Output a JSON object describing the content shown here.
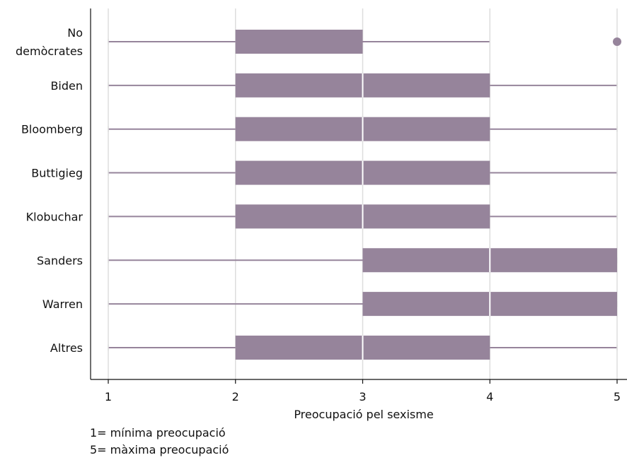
{
  "chart_data": {
    "type": "boxplot",
    "orientation": "horizontal",
    "xlabel": "Preocupació pel sexisme",
    "xlim": [
      1,
      5
    ],
    "xticks": [
      1,
      2,
      3,
      4,
      5
    ],
    "grid": "vertical",
    "box_color": "#96849b",
    "whisker_color": "#96849b",
    "grid_color": "#dddddd",
    "categories": [
      {
        "label_lines": [
          "No",
          "demòcrates"
        ],
        "whisker_low": 1,
        "q1": 2,
        "median": 3,
        "q3": 3,
        "whisker_high": 4,
        "outliers": [
          5
        ]
      },
      {
        "label_lines": [
          "Biden"
        ],
        "whisker_low": 1,
        "q1": 2,
        "median": 3,
        "q3": 4,
        "whisker_high": 5,
        "outliers": []
      },
      {
        "label_lines": [
          "Bloomberg"
        ],
        "whisker_low": 1,
        "q1": 2,
        "median": 3,
        "q3": 4,
        "whisker_high": 5,
        "outliers": []
      },
      {
        "label_lines": [
          "Buttigieg"
        ],
        "whisker_low": 1,
        "q1": 2,
        "median": 3,
        "q3": 4,
        "whisker_high": 5,
        "outliers": []
      },
      {
        "label_lines": [
          "Klobuchar"
        ],
        "whisker_low": 1,
        "q1": 2,
        "median": 3,
        "q3": 4,
        "whisker_high": 5,
        "outliers": []
      },
      {
        "label_lines": [
          "Sanders"
        ],
        "whisker_low": 1,
        "q1": 3,
        "median": 4,
        "q3": 5,
        "whisker_high": 5,
        "outliers": []
      },
      {
        "label_lines": [
          "Warren"
        ],
        "whisker_low": 1,
        "q1": 3,
        "median": 4,
        "q3": 5,
        "whisker_high": 5,
        "outliers": []
      },
      {
        "label_lines": [
          "Altres"
        ],
        "whisker_low": 1,
        "q1": 2,
        "median": 3,
        "q3": 4,
        "whisker_high": 5,
        "outliers": []
      }
    ]
  },
  "notes": {
    "min_note": "1= mínima preocupació",
    "max_note": "5= màxima preocupació"
  }
}
